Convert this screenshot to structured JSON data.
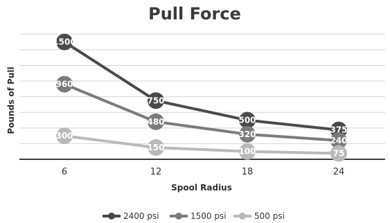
{
  "chart_data": {
    "type": "line",
    "title": "Pull Force",
    "xlabel": "Spool Radius",
    "ylabel": "Pounds of Pull",
    "categories": [
      "6",
      "12",
      "18",
      "24"
    ],
    "ylim": [
      0,
      1700
    ],
    "grid": true,
    "legend": "bottom",
    "series": [
      {
        "name": "2400 psi",
        "values": [
          1500,
          750,
          500,
          375
        ],
        "labels": [
          "1500",
          "750",
          "500",
          "375"
        ],
        "color": "#4a4a4a"
      },
      {
        "name": "1500 psi",
        "values": [
          960,
          480,
          320,
          240
        ],
        "labels": [
          "960",
          "480",
          "320",
          "240"
        ],
        "color": "#7b7b7b"
      },
      {
        "name": "500 psi",
        "values": [
          300,
          150,
          100,
          75
        ],
        "labels": [
          "300",
          "150",
          "100",
          "75"
        ],
        "color": "#b9b9b9"
      }
    ]
  }
}
